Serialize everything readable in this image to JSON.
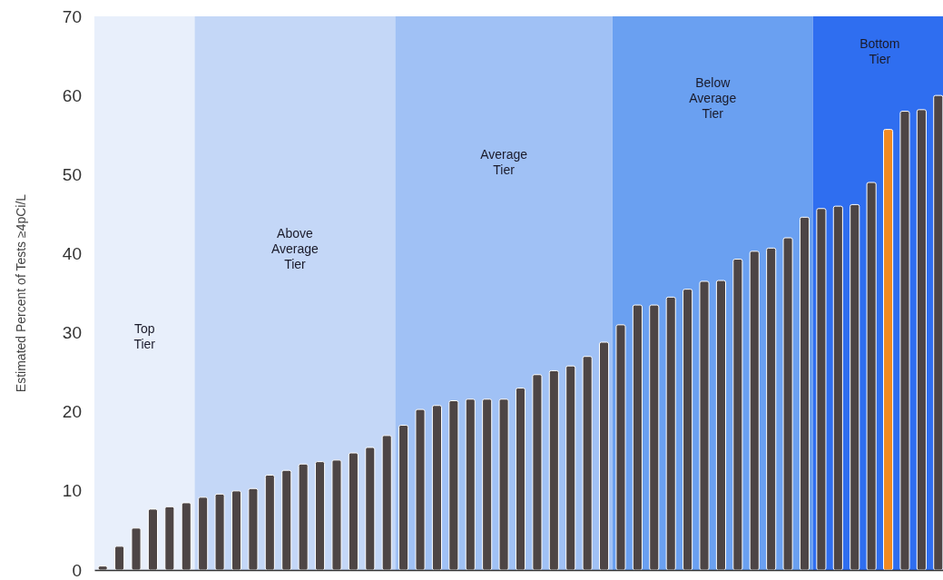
{
  "chart_data": {
    "type": "bar",
    "ylabel": "Estimated Percent of Tests ≥4pCi/L",
    "categories": [
      null,
      null,
      null,
      null,
      null,
      null,
      null,
      null,
      null,
      null,
      null,
      null,
      null,
      null,
      null,
      null,
      null,
      null,
      null,
      null,
      null,
      null,
      null,
      null,
      null,
      null,
      null,
      null,
      null,
      null,
      null,
      null,
      null,
      null,
      null,
      null,
      null,
      null,
      null,
      null,
      null,
      null,
      null,
      null,
      null,
      null,
      null,
      null,
      null,
      null,
      null
    ],
    "values": [
      0.5,
      3,
      5.3,
      7.7,
      8,
      8.5,
      9.2,
      9.6,
      10,
      10.3,
      12,
      12.6,
      13.4,
      13.7,
      13.9,
      14.8,
      15.5,
      17,
      18.3,
      20.3,
      20.8,
      21.4,
      21.6,
      21.6,
      21.6,
      23,
      24.7,
      25.2,
      25.8,
      27,
      28.8,
      31,
      33.5,
      33.5,
      34.5,
      35.5,
      36.5,
      36.6,
      39.3,
      40.3,
      40.7,
      42,
      44.6,
      45.7,
      46,
      46.2,
      49,
      55.7,
      58,
      58.2,
      60
    ],
    "colors": [
      "#4d4545",
      "#4d4545",
      "#4d4545",
      "#4d4545",
      "#4d4545",
      "#4d4545",
      "#4d4545",
      "#4d4545",
      "#4d4545",
      "#4d4545",
      "#4d4545",
      "#4d4545",
      "#4d4545",
      "#4d4545",
      "#4d4545",
      "#4d4545",
      "#4d4545",
      "#4d4545",
      "#4d4545",
      "#4d4545",
      "#4d4545",
      "#4d4545",
      "#4d4545",
      "#4d4545",
      "#4d4545",
      "#4d4545",
      "#4d4545",
      "#4d4545",
      "#4d4545",
      "#4d4545",
      "#4d4545",
      "#4d4545",
      "#4d4545",
      "#4d4545",
      "#4d4545",
      "#4d4545",
      "#4d4545",
      "#4d4545",
      "#4d4545",
      "#4d4545",
      "#4d4545",
      "#4d4545",
      "#4d4545",
      "#4d4545",
      "#4d4545",
      "#4d4545",
      "#4d4545",
      "#f28a22",
      "#4d4545",
      "#4d4545",
      "#4d4545"
    ],
    "ylim": [
      0,
      70
    ],
    "yticks": [
      0,
      10,
      20,
      30,
      40,
      50,
      60,
      70
    ],
    "annotations": [
      "Top\nTier",
      "Above\nAverage\nTier",
      "Average\nTier",
      "Below\nAverage\nTier",
      "Bottom\nTier"
    ]
  }
}
